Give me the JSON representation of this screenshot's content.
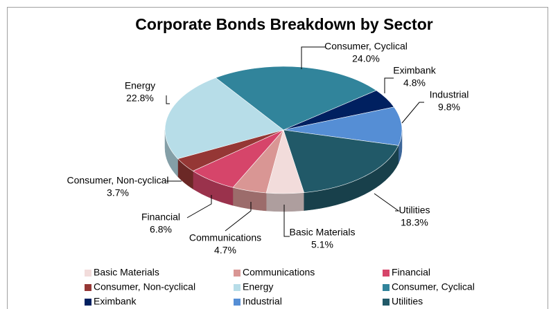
{
  "chart_data": {
    "type": "pie",
    "title": "Corporate Bonds Breakdown by Sector",
    "categories": [
      "Basic Materials",
      "Communications",
      "Financial",
      "Consumer, Non-cyclical",
      "Energy",
      "Consumer, Cyclical",
      "Eximbank",
      "Industrial",
      "Utilities"
    ],
    "values": [
      5.1,
      4.7,
      6.8,
      3.7,
      22.8,
      24.0,
      4.8,
      9.8,
      18.3
    ],
    "value_labels": [
      "5.1%",
      "4.7%",
      "6.8%",
      "3.7%",
      "22.8%",
      "24.0%",
      "4.8%",
      "9.8%",
      "18.3%"
    ],
    "colors": [
      "#f2dcdb",
      "#d99694",
      "#d6456a",
      "#953735",
      "#b7dde8",
      "#31849b",
      "#002060",
      "#558ed5",
      "#215968"
    ],
    "legend": "bottom"
  }
}
